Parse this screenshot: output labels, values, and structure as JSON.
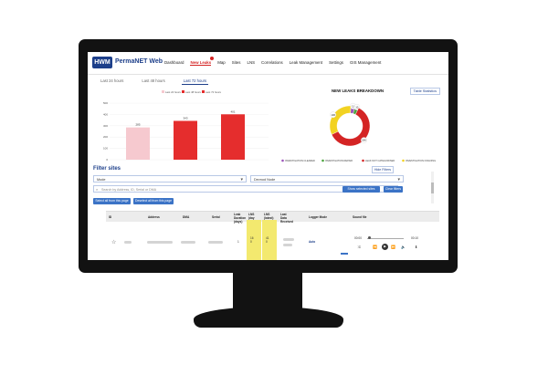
{
  "app": {
    "brand": "PermaNET Web",
    "logo": "HWM"
  },
  "nav": {
    "items": [
      "Dashboard",
      "New Leaks",
      "Map",
      "Sites",
      "LNS",
      "Correlations",
      "Leak Management",
      "Settings",
      "GIS Management"
    ],
    "active": "New Leaks"
  },
  "tabs": [
    "Last 24 hours",
    "Last 48 hours",
    "Last 72 hours"
  ],
  "active_tab": "Last 72 hours",
  "chart_data": [
    {
      "type": "bar",
      "categories": [
        "Last 24 hours",
        "Last 48 hours",
        "Last 72 hours"
      ],
      "values": [
        285,
        343,
        401
      ],
      "legend": [
        "Last 24 hours",
        "Last 48 hours",
        "Last 72 hours"
      ],
      "yticks": [
        0,
        100,
        200,
        300,
        400,
        500
      ],
      "ylim": [
        0,
        500
      ],
      "colors": [
        "#f6c9cf",
        "#e52d2d",
        "#e52d2d"
      ],
      "legend_position": "top"
    },
    {
      "type": "pie",
      "title": "NEW LEAKS BREAKDOWN",
      "labels": [
        "INVESTIGATION CLEARED",
        "INVESTIGATION REPAIR",
        "LEAK NOT CATEGORISED",
        "INVESTIGATION ONGOING"
      ],
      "values": [
        11,
        10,
        196,
        106
      ],
      "colors": [
        "#9b53b9",
        "#4aa43c",
        "#d42424",
        "#f2d222"
      ],
      "legend_position": "bottom"
    }
  ],
  "buttons": {
    "table": "Table Statistics",
    "filters": "Hide Filters",
    "show_selected": "Show selected sites",
    "clear": "Clear filters",
    "select_all": "Select all from this page",
    "deselect_all": "Deselect all from this page"
  },
  "filter": {
    "title": "Filter sites",
    "mode": "Mode",
    "devnode": "Devnod Node",
    "search_placeholder": "Search by Address, ID, Serial or DMA"
  },
  "table": {
    "columns": [
      "ID",
      "Address",
      "DMA",
      "Serial",
      "Leak Duration (days)",
      "LNS (day before leak)",
      "LNS (latest)",
      "Last Data Received",
      "Logger Mode",
      "Sound file"
    ]
  },
  "row": {
    "duration": "1",
    "lns_before": "16\n0",
    "lns_latest": "41\n0",
    "logger_mode": "Auto",
    "audio_start": "00:00",
    "audio_end": "00:10"
  }
}
